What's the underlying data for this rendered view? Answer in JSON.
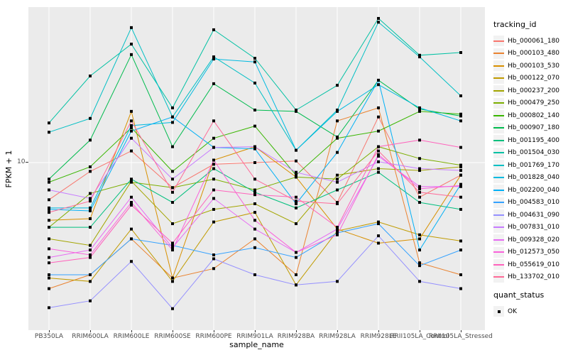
{
  "figure": {
    "panel_background": "#EBEBEB",
    "grid_color": "#FFFFFF",
    "tick_color": "#333333",
    "tick_label_color": "#4D4D4D",
    "point_color": "#000000",
    "legend_key_background": "#F2F2F2"
  },
  "axes": {
    "x_title": "sample_name",
    "y_title": "FPKM + 1",
    "y_tick_label": "10"
  },
  "legend": {
    "tracking_title": "tracking_id",
    "quant_title": "quant_status",
    "quant_items": [
      {
        "label": "OK",
        "shape": "square",
        "color": "#000000"
      }
    ]
  },
  "chart_data": {
    "type": "line",
    "title": "",
    "xlabel": "sample_name",
    "ylabel": "FPKM + 1",
    "y_scale": "log10",
    "y_tick_labels": [
      "10"
    ],
    "ylim_approx": [
      1.5,
      62
    ],
    "grid": "white-on-gray",
    "legend_position": "right",
    "point_shape": "filled black square (quant_status OK)",
    "categories": [
      "PB350LA",
      "RRIM600LA",
      "RRIM600LE",
      "RRIM600SE",
      "RRIM600PE",
      "RRIM901LA",
      "RRIM928BA",
      "RRIM928LA",
      "RRIM928LE",
      "RRII105LA_Control",
      "RRII105LA_Stressed"
    ],
    "series": [
      {
        "name": "Hb_000061_180",
        "color": "#F8766D",
        "values": [
          6.4,
          9.0,
          11.5,
          7.4,
          9.8,
          10.0,
          10.2,
          6.2,
          17.3,
          6.6,
          8.6
        ]
      },
      {
        "name": "Hb_000103_480",
        "color": "#EA8331",
        "values": [
          2.2,
          2.6,
          4.0,
          2.5,
          2.8,
          4.0,
          2.6,
          16.5,
          19.3,
          3.0,
          2.6
        ]
      },
      {
        "name": "Hb_000103_530",
        "color": "#D89000",
        "values": [
          5.0,
          5.1,
          18.5,
          2.5,
          10.3,
          12.1,
          8.4,
          4.5,
          3.8,
          4.0,
          8.6
        ]
      },
      {
        "name": "Hb_000122_070",
        "color": "#C09B00",
        "values": [
          2.5,
          2.4,
          4.5,
          2.4,
          4.9,
          5.5,
          2.3,
          4.4,
          4.9,
          4.2,
          3.9
        ]
      },
      {
        "name": "Hb_000237_200",
        "color": "#A3A500",
        "values": [
          4.0,
          3.7,
          8.0,
          4.8,
          5.7,
          6.1,
          4.8,
          8.6,
          9.3,
          9.1,
          9.5
        ]
      },
      {
        "name": "Hb_000479_250",
        "color": "#7CAE00",
        "values": [
          4.6,
          6.9,
          7.9,
          7.4,
          8.2,
          7.2,
          8.4,
          8.2,
          12.1,
          10.5,
          9.7
        ]
      },
      {
        "name": "Hb_000802_140",
        "color": "#39B600",
        "values": [
          7.9,
          9.5,
          15.2,
          9.0,
          13.4,
          15.5,
          8.6,
          13.4,
          14.6,
          18.5,
          17.9
        ]
      },
      {
        "name": "Hb_000907_180",
        "color": "#00BB4E",
        "values": [
          8.2,
          13.1,
          36.6,
          12.1,
          25.8,
          18.8,
          18.5,
          13.6,
          26.9,
          19.0,
          17.5
        ]
      },
      {
        "name": "Hb_001195_400",
        "color": "#00BF7D",
        "values": [
          4.6,
          4.6,
          8.2,
          6.2,
          9.3,
          7.0,
          5.8,
          7.2,
          8.9,
          6.2,
          5.7
        ]
      },
      {
        "name": "Hb_001504_030",
        "color": "#00C1A3",
        "values": [
          16.1,
          28.3,
          41.5,
          19.3,
          49.3,
          35.0,
          18.8,
          25.3,
          56.5,
          36.3,
          37.5
        ]
      },
      {
        "name": "Hb_001769_170",
        "color": "#00BFC4",
        "values": [
          14.4,
          17.0,
          50.6,
          17.3,
          35.6,
          26.0,
          11.6,
          18.8,
          54.0,
          35.6,
          22.3
        ]
      },
      {
        "name": "Hb_001828_040",
        "color": "#00BAE0",
        "values": [
          5.8,
          5.8,
          15.6,
          16.2,
          34.7,
          33.5,
          11.6,
          18.5,
          25.5,
          19.3,
          16.5
        ]
      },
      {
        "name": "Hb_002200_040",
        "color": "#00B0F6",
        "values": [
          5.7,
          5.6,
          14.6,
          17.3,
          12.0,
          11.8,
          6.1,
          11.3,
          26.9,
          3.5,
          7.7
        ]
      },
      {
        "name": "Hb_004583_010",
        "color": "#35A2FF",
        "values": [
          2.6,
          2.6,
          4.0,
          3.7,
          3.3,
          3.6,
          3.2,
          4.3,
          4.8,
          2.9,
          3.5
        ]
      },
      {
        "name": "Hb_004631_090",
        "color": "#9590FF",
        "values": [
          1.75,
          1.9,
          3.05,
          1.73,
          3.15,
          2.6,
          2.3,
          2.4,
          4.15,
          2.4,
          2.2
        ]
      },
      {
        "name": "Hb_007831_010",
        "color": "#C77CFF",
        "values": [
          7.2,
          6.5,
          13.4,
          8.2,
          12.0,
          12.1,
          8.9,
          7.9,
          10.1,
          9.3,
          9.1
        ]
      },
      {
        "name": "Hb_009328_020",
        "color": "#E76BF3",
        "values": [
          3.2,
          3.5,
          6.6,
          3.6,
          6.5,
          4.5,
          3.4,
          4.5,
          10.8,
          7.5,
          7.5
        ]
      },
      {
        "name": "Hb_012573_050",
        "color": "#FA62DB",
        "values": [
          3.55,
          3.3,
          6.2,
          3.5,
          10.3,
          5.0,
          3.4,
          4.2,
          11.0,
          7.3,
          7.6
        ]
      },
      {
        "name": "Hb_055619_010",
        "color": "#FF62BC",
        "values": [
          3.0,
          3.2,
          6.0,
          3.8,
          7.2,
          6.8,
          6.6,
          4.6,
          12.1,
          13.1,
          12.0
        ]
      },
      {
        "name": "Hb_133702_010",
        "color": "#FF6A98",
        "values": [
          5.5,
          6.3,
          16.5,
          7.0,
          16.5,
          8.2,
          6.3,
          6.1,
          11.5,
          7.0,
          6.6
        ]
      }
    ]
  }
}
